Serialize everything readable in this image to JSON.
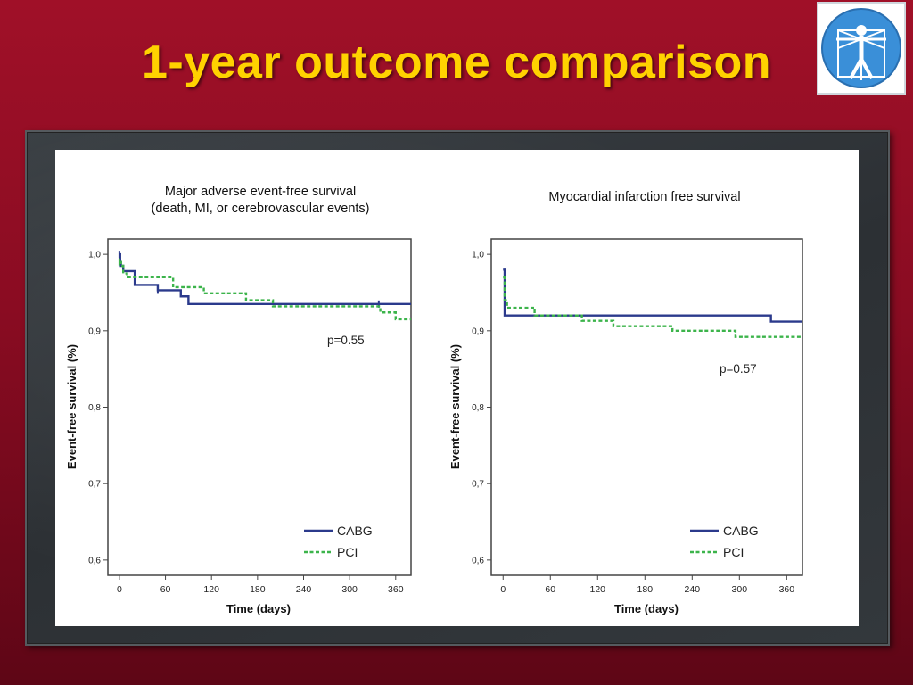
{
  "slide": {
    "title": "1-year outcome comparison"
  },
  "logo": {
    "name": "vitruvian-man-logo",
    "colors": {
      "primary": "#3a8fd8",
      "figure": "#ffffff"
    }
  },
  "colors": {
    "cabg": "#2b3a8c",
    "pci": "#3cb44b",
    "title": "#ffd200"
  },
  "chart_data": [
    {
      "type": "line",
      "title": "Major adverse event-free survival",
      "subtitle": "(death, MI, or cerebrovascular events)",
      "xlabel": "Time (days)",
      "ylabel": "Event-free survival (%)",
      "xlim": [
        -15,
        380
      ],
      "ylim": [
        0.58,
        1.02
      ],
      "xticks": [
        0,
        60,
        120,
        180,
        240,
        300,
        360
      ],
      "xtick_labels": [
        "0",
        "60",
        "120",
        "180",
        "240",
        "300",
        "360"
      ],
      "yticks": [
        0.6,
        0.7,
        0.8,
        0.9,
        1.0
      ],
      "ytick_labels": [
        "0,6",
        "0,7",
        "0,8",
        "0,9",
        "1,0"
      ],
      "annotation": "p=0.55",
      "legend_position": "bottom-right",
      "series": [
        {
          "name": "CABG",
          "style": "solid",
          "color": "#2b3a8c",
          "steps": [
            [
              0,
              1.0
            ],
            [
              1,
              0.99
            ],
            [
              2,
              0.985
            ],
            [
              5,
              0.978
            ],
            [
              20,
              0.96
            ],
            [
              50,
              0.953
            ],
            [
              80,
              0.945
            ],
            [
              90,
              0.935
            ],
            [
              380,
              0.935
            ]
          ],
          "censor": [
            [
              0,
              1.0
            ],
            [
              50,
              0.953
            ],
            [
              338,
              0.935
            ]
          ]
        },
        {
          "name": "PCI",
          "style": "dashed",
          "color": "#3cb44b",
          "steps": [
            [
              0,
              0.99
            ],
            [
              2,
              0.985
            ],
            [
              5,
              0.975
            ],
            [
              10,
              0.97
            ],
            [
              70,
              0.957
            ],
            [
              110,
              0.949
            ],
            [
              165,
              0.94
            ],
            [
              200,
              0.932
            ],
            [
              340,
              0.924
            ],
            [
              360,
              0.915
            ],
            [
              380,
              0.915
            ]
          ],
          "censor": [
            [
              0,
              0.99
            ]
          ]
        }
      ]
    },
    {
      "type": "line",
      "title": "Myocardial infarction free survival",
      "xlabel": "Time (days)",
      "ylabel": "Event-free survival (%)",
      "xlim": [
        -15,
        380
      ],
      "ylim": [
        0.58,
        1.02
      ],
      "xticks": [
        0,
        60,
        120,
        180,
        240,
        300,
        360
      ],
      "xtick_labels": [
        "0",
        "60",
        "120",
        "180",
        "240",
        "300",
        "360"
      ],
      "yticks": [
        0.6,
        0.7,
        0.8,
        0.9,
        1.0
      ],
      "ytick_labels": [
        "0,6",
        "0,7",
        "0,8",
        "0,9",
        "1,0"
      ],
      "annotation": "p=0.57",
      "legend_position": "bottom-right",
      "series": [
        {
          "name": "CABG",
          "style": "solid",
          "color": "#2b3a8c",
          "steps": [
            [
              0,
              0.98
            ],
            [
              2,
              0.92
            ],
            [
              340,
              0.912
            ],
            [
              380,
              0.912
            ]
          ],
          "censor": []
        },
        {
          "name": "PCI",
          "style": "dashed",
          "color": "#3cb44b",
          "steps": [
            [
              0,
              0.97
            ],
            [
              2,
              0.94
            ],
            [
              5,
              0.93
            ],
            [
              40,
              0.92
            ],
            [
              100,
              0.913
            ],
            [
              140,
              0.906
            ],
            [
              215,
              0.9
            ],
            [
              295,
              0.892
            ],
            [
              380,
              0.892
            ]
          ],
          "censor": []
        }
      ]
    }
  ]
}
